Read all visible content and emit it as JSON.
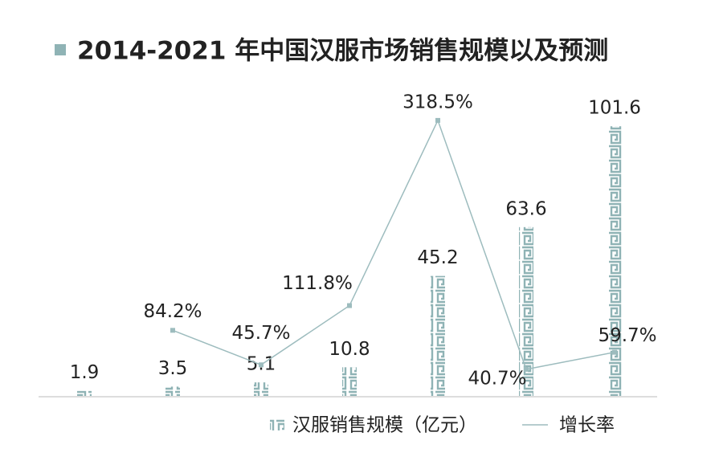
{
  "chart_data": {
    "type": "bar-line",
    "title": "2014-2021 年中国汉服市场销售规模以及预测",
    "categories": [
      null,
      null,
      null,
      null,
      null,
      null,
      null
    ],
    "series": [
      {
        "name": "汉服销售规模（亿元）",
        "type": "bar",
        "color": "#8fb3b5",
        "values": [
          1.9,
          3.5,
          5.1,
          10.8,
          45.2,
          63.6,
          101.6
        ]
      },
      {
        "name": "增长率",
        "type": "line",
        "axis": "y2",
        "color": "#9dbcbe",
        "values": [
          null,
          84.2,
          45.7,
          111.8,
          318.5,
          40.7,
          59.7
        ],
        "value_labels": [
          null,
          "84.2%",
          "45.7%",
          "111.8%",
          "318.5%",
          "40.7%",
          "59.7%"
        ]
      }
    ],
    "ylim": [
      0,
      105
    ],
    "y2lim": [
      11,
      322
    ],
    "legend": "bottom"
  }
}
